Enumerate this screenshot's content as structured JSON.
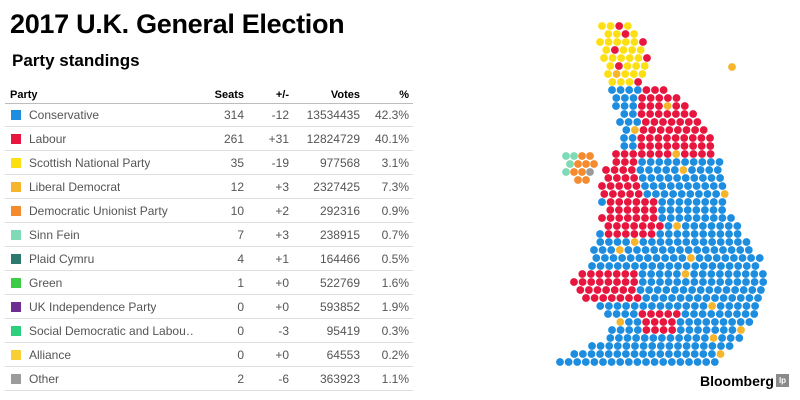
{
  "header": {
    "title": "2017 U.K. General Election",
    "subtitle": "Party standings"
  },
  "table": {
    "columns": [
      "Party",
      "Seats",
      "+/-",
      "Votes",
      "%"
    ],
    "rows": [
      {
        "party": "Conservative",
        "seats": "314",
        "change": "-12",
        "votes": "13534435",
        "pct": "42.3%",
        "color": "#1c8ddf"
      },
      {
        "party": "Labour",
        "seats": "261",
        "change": "+31",
        "votes": "12824729",
        "pct": "40.1%",
        "color": "#e8153f"
      },
      {
        "party": "Scottish National Party",
        "seats": "35",
        "change": "-19",
        "votes": "977568",
        "pct": "3.1%",
        "color": "#fde013"
      },
      {
        "party": "Liberal Democrat",
        "seats": "12",
        "change": "+3",
        "votes": "2327425",
        "pct": "7.3%",
        "color": "#f7b52c"
      },
      {
        "party": "Democratic Unionist Party",
        "seats": "10",
        "change": "+2",
        "votes": "292316",
        "pct": "0.9%",
        "color": "#f58b2f"
      },
      {
        "party": "Sinn Fein",
        "seats": "7",
        "change": "+3",
        "votes": "238915",
        "pct": "0.7%",
        "color": "#7fdbb6"
      },
      {
        "party": "Plaid Cymru",
        "seats": "4",
        "change": "+1",
        "votes": "164466",
        "pct": "0.5%",
        "color": "#2c7a6f"
      },
      {
        "party": "Green",
        "seats": "1",
        "change": "+0",
        "votes": "522769",
        "pct": "1.6%",
        "color": "#3ccc45"
      },
      {
        "party": "UK Independence Party",
        "seats": "0",
        "change": "+0",
        "votes": "593852",
        "pct": "1.9%",
        "color": "#6e2d91"
      },
      {
        "party": "Social Democratic and Labou…",
        "seats": "0",
        "change": "-3",
        "votes": "95419",
        "pct": "0.3%",
        "color": "#2ecf7e"
      },
      {
        "party": "Alliance",
        "seats": "0",
        "change": "+0",
        "votes": "64553",
        "pct": "0.2%",
        "color": "#f9cf36"
      },
      {
        "party": "Other",
        "seats": "2",
        "change": "-6",
        "votes": "363923",
        "pct": "1.1%",
        "color": "#9b9b9b"
      }
    ]
  },
  "map": {
    "colors": {
      "conservative": "#1c8ddf",
      "labour": "#e8153f",
      "snp": "#fde013",
      "libdem": "#f7b52c",
      "dup": "#f58b2f",
      "sinn_fein": "#7fdbb6",
      "plaid": "#2c7a6f",
      "green": "#3ccc45",
      "other": "#9b9b9b"
    }
  },
  "footer": {
    "brand": "Bloomberg",
    "brand_icon": "bloomberg-logo-icon"
  }
}
